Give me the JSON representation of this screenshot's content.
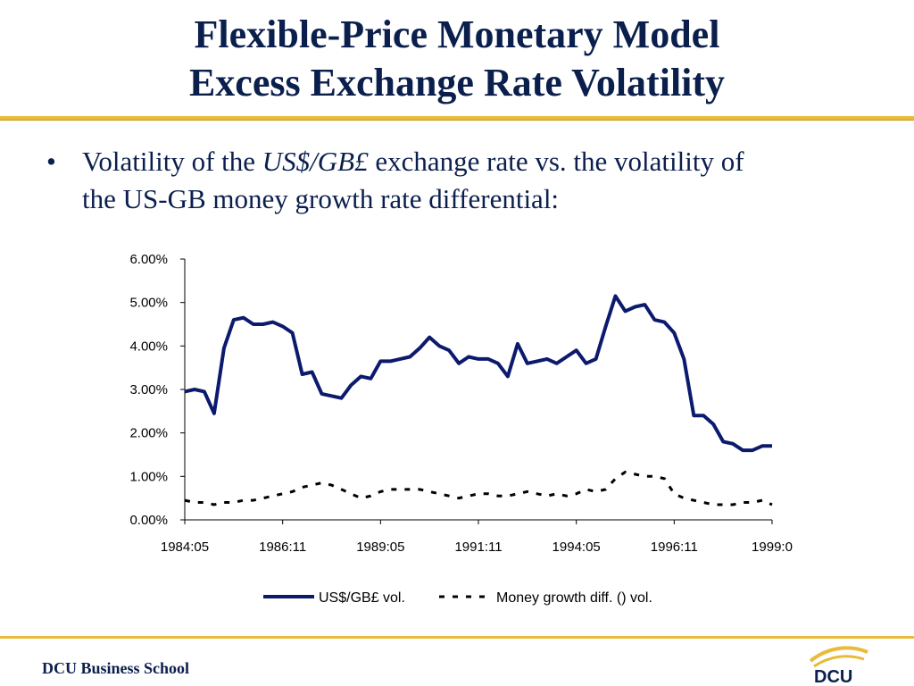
{
  "slide": {
    "title_line1": "Flexible-Price Monetary Model",
    "title_line2": "Excess Exchange Rate Volatility",
    "bullet_pre": "Volatility of the ",
    "bullet_em": "US$/GB£",
    "bullet_post": " exchange rate vs. the volatility of",
    "bullet_line2": "the US-GB money growth rate differential:",
    "footer": "DCU Business School",
    "logo_text": "DCU"
  },
  "colors": {
    "title": "#0b1f4d",
    "rule": "#e9bb3a",
    "series_fx": "#0c1a6e",
    "series_money": "#000000"
  },
  "chart_data": {
    "type": "line",
    "x": [
      "1984:05",
      "1984:08",
      "1984:11",
      "1985:02",
      "1985:05",
      "1985:08",
      "1985:11",
      "1986:02",
      "1986:05",
      "1986:08",
      "1986:11",
      "1987:02",
      "1987:05",
      "1987:08",
      "1987:11",
      "1988:02",
      "1988:05",
      "1988:08",
      "1988:11",
      "1989:02",
      "1989:05",
      "1989:08",
      "1989:11",
      "1990:02",
      "1990:05",
      "1990:08",
      "1990:11",
      "1991:02",
      "1991:05",
      "1991:08",
      "1991:11",
      "1992:02",
      "1992:05",
      "1992:08",
      "1992:11",
      "1993:02",
      "1993:05",
      "1993:08",
      "1993:11",
      "1994:02",
      "1994:05",
      "1994:08",
      "1994:11",
      "1995:02",
      "1995:05",
      "1995:08",
      "1995:11",
      "1996:02",
      "1996:05",
      "1996:08",
      "1996:11",
      "1997:02",
      "1997:05",
      "1997:08",
      "1997:11",
      "1998:02",
      "1998:05",
      "1998:08",
      "1998:11",
      "1999:02",
      "1999:05"
    ],
    "x_tick_labels": [
      "1984:05",
      "1986:11",
      "1989:05",
      "1991:11",
      "1994:05",
      "1996:11",
      "1999:0"
    ],
    "x_tick_indices": [
      0,
      10,
      20,
      30,
      40,
      50,
      60
    ],
    "y_ticks": [
      "0.00%",
      "1.00%",
      "2.00%",
      "3.00%",
      "4.00%",
      "5.00%",
      "6.00%"
    ],
    "ylim": [
      0,
      6
    ],
    "series": [
      {
        "name": "US$/GB£ vol.",
        "style": "solid",
        "values": [
          2.95,
          3.0,
          2.95,
          2.45,
          3.95,
          4.6,
          4.65,
          4.5,
          4.5,
          4.55,
          4.45,
          4.3,
          3.35,
          3.4,
          2.9,
          2.85,
          2.8,
          3.1,
          3.3,
          3.25,
          3.65,
          3.65,
          3.7,
          3.75,
          3.95,
          4.2,
          4.0,
          3.9,
          3.6,
          3.75,
          3.7,
          3.7,
          3.6,
          3.3,
          4.05,
          3.6,
          3.65,
          3.7,
          3.6,
          3.75,
          3.9,
          3.6,
          3.7,
          4.45,
          5.15,
          4.8,
          4.9,
          4.95,
          4.6,
          4.55,
          4.3,
          3.7,
          2.4,
          2.4,
          2.2,
          1.8,
          1.75,
          1.6,
          1.6,
          1.7,
          1.7
        ]
      },
      {
        "name": "Money growth diff. () vol.",
        "style": "dashed",
        "values": [
          0.45,
          0.4,
          0.4,
          0.35,
          0.4,
          0.4,
          0.45,
          0.45,
          0.5,
          0.55,
          0.6,
          0.65,
          0.75,
          0.8,
          0.85,
          0.8,
          0.7,
          0.6,
          0.5,
          0.55,
          0.65,
          0.7,
          0.7,
          0.7,
          0.7,
          0.65,
          0.6,
          0.55,
          0.5,
          0.55,
          0.6,
          0.6,
          0.55,
          0.55,
          0.6,
          0.65,
          0.6,
          0.55,
          0.6,
          0.55,
          0.6,
          0.7,
          0.65,
          0.7,
          0.95,
          1.1,
          1.05,
          1.0,
          1.0,
          0.95,
          0.6,
          0.5,
          0.45,
          0.4,
          0.35,
          0.35,
          0.35,
          0.4,
          0.4,
          0.45,
          0.35
        ]
      }
    ],
    "legend": "bottom-center"
  }
}
